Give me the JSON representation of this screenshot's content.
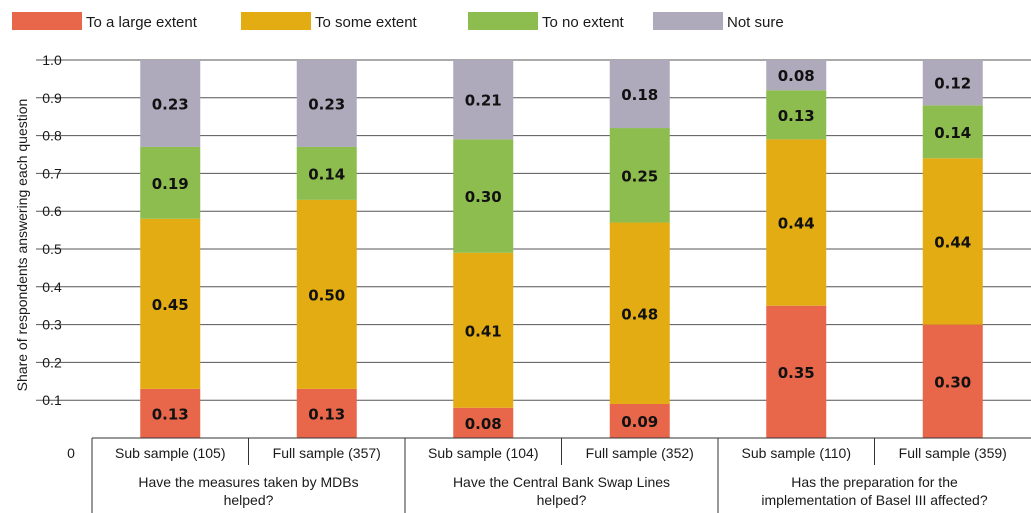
{
  "chart_data": {
    "type": "bar",
    "stacked": true,
    "ylabel": "Share of respondents answering each question",
    "ylim": [
      0,
      1.0
    ],
    "yticks": [
      "0",
      "0.1",
      "0.2",
      "0.3",
      "0.4",
      "0.5",
      "0.6",
      "0.7",
      "0.8",
      "0.9",
      "1.0"
    ],
    "grid": true,
    "legend_position": "top-left",
    "categories": [
      "Sub sample (105)",
      "Full sample (357)",
      "Sub sample (104)",
      "Full sample (352)",
      "Sub sample (110)",
      "Full sample (359)"
    ],
    "groups": [
      {
        "label": "Have the measures taken by MDBs helped?",
        "lines": [
          "Have the measures taken by MDBs",
          "helped?"
        ]
      },
      {
        "label": "Have the Central Bank Swap Lines helped?",
        "lines": [
          "Have the Central Bank Swap Lines",
          "helped?"
        ]
      },
      {
        "label": "Has the preparation for the implementation of Basel III affected?",
        "lines": [
          "Has the preparation for the",
          "implementation of Basel III affected?"
        ]
      }
    ],
    "series": [
      {
        "name": "To a large extent",
        "color": "#e8674a",
        "values": [
          0.13,
          0.13,
          0.08,
          0.09,
          0.35,
          0.3
        ],
        "labels": [
          "0.13",
          "0.13",
          "0.08",
          "0.09",
          "0.35",
          "0.30"
        ]
      },
      {
        "name": "To some extent",
        "color": "#e3ac12",
        "values": [
          0.45,
          0.5,
          0.41,
          0.48,
          0.44,
          0.44
        ],
        "labels": [
          "0.45",
          "0.50",
          "0.41",
          "0.48",
          "0.44",
          "0.44"
        ]
      },
      {
        "name": "To no extent",
        "color": "#8dbc4f",
        "values": [
          0.19,
          0.14,
          0.3,
          0.25,
          0.13,
          0.14
        ],
        "labels": [
          "0.19",
          "0.14",
          "0.30",
          "0.25",
          "0.13",
          "0.14"
        ]
      },
      {
        "name": "Not sure",
        "color": "#aea9bb",
        "values": [
          0.23,
          0.23,
          0.21,
          0.18,
          0.08,
          0.12
        ],
        "labels": [
          "0.23",
          "0.23",
          "0.21",
          "0.18",
          "0.08",
          "0.12"
        ]
      }
    ]
  }
}
